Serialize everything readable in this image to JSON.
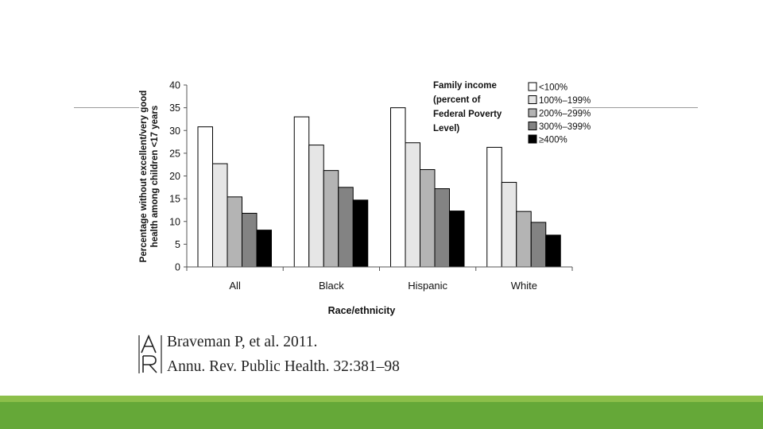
{
  "chart_data": {
    "type": "bar",
    "title": "",
    "xlabel": "Race/ethnicity",
    "ylabel": "Percentage without excellent/very good health among children <17 years",
    "ylabel_lines": [
      "Percentage without excellent/very good",
      "health among children <17 years"
    ],
    "ylim": [
      0,
      40
    ],
    "yticks": [
      0,
      5,
      10,
      15,
      20,
      25,
      30,
      35,
      40
    ],
    "grid": false,
    "legend_title_lines": [
      "Family income",
      "(percent of",
      "Federal Poverty",
      "Level)"
    ],
    "legend_position": "top-right",
    "categories": [
      "All",
      "Black",
      "Hispanic",
      "White"
    ],
    "series": [
      {
        "name": "<100%",
        "color": "#ffffff",
        "values": [
          30.8,
          33.0,
          35.0,
          26.3
        ]
      },
      {
        "name": "100%–199%",
        "color": "#e6e6e6",
        "values": [
          22.7,
          26.8,
          27.3,
          18.6
        ]
      },
      {
        "name": "200%–299%",
        "color": "#b4b4b4",
        "values": [
          15.4,
          21.2,
          21.4,
          12.2
        ]
      },
      {
        "name": "300%–399%",
        "color": "#838383",
        "values": [
          11.8,
          17.5,
          17.2,
          9.8
        ]
      },
      {
        "name": "≥400%",
        "color": "#000000",
        "values": [
          8.1,
          14.7,
          12.3,
          7.0
        ]
      }
    ]
  },
  "citation": {
    "logo_text": "AR",
    "line1": "Braveman P, et al. 2011.",
    "line2": "Annu. Rev. Public Health. 32:381–98"
  }
}
